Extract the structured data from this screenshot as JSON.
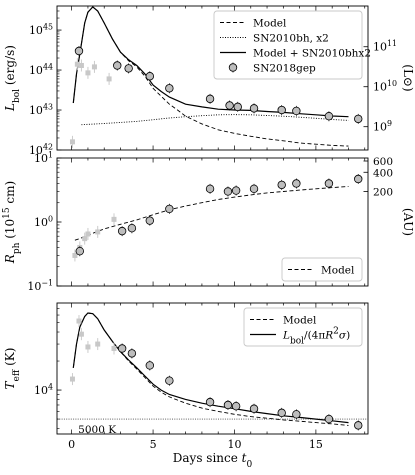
{
  "chart_data": [
    {
      "type": "line",
      "id": "lbol",
      "ylabel": "L_bol (erg/s)",
      "ylabel_right": "(L⊙)",
      "yscale": "log",
      "ylim": [
        1e+42,
        4e+45
      ],
      "yticks": [
        {
          "v": 1e+42,
          "label": "10^42"
        },
        {
          "v": 1e+43,
          "label": "10^43"
        },
        {
          "v": 1e+44,
          "label": "10^44"
        },
        {
          "v": 1e+45,
          "label": "10^45"
        }
      ],
      "yticks_right": [
        {
          "v": 3.828e+42,
          "label": "10^9"
        },
        {
          "v": 3.828e+43,
          "label": "10^10"
        },
        {
          "v": 3.828e+44,
          "label": "10^11"
        }
      ],
      "legend": {
        "position": "top-right",
        "entries": [
          "Model",
          "SN2010bh, x2",
          "Model + SN2010bhx2",
          "SN2018gep"
        ]
      },
      "series": [
        {
          "name": "Model",
          "style": "dashed",
          "points": [
            [
              0.1,
              1.5e+43
            ],
            [
              0.3,
              8e+43
            ],
            [
              0.5,
              2.5e+44
            ],
            [
              0.8,
              1.5e+45
            ],
            [
              1.0,
              2.8e+45
            ],
            [
              1.3,
              3.8e+45
            ],
            [
              1.6,
              3e+45
            ],
            [
              2.0,
              1.5e+45
            ],
            [
              2.5,
              6e+44
            ],
            [
              3.0,
              2.8e+44
            ],
            [
              3.5,
              1.7e+44
            ],
            [
              4.0,
              1.2e+44
            ],
            [
              4.5,
              7e+43
            ],
            [
              5.0,
              3.5e+43
            ],
            [
              5.5,
              2.2e+43
            ],
            [
              6.0,
              1.4e+43
            ],
            [
              6.5,
              1e+43
            ],
            [
              7.0,
              7e+42
            ],
            [
              8.0,
              4.5e+42
            ],
            [
              9.0,
              3.2e+42
            ],
            [
              10.0,
              2.6e+42
            ],
            [
              11.0,
              2.2e+42
            ],
            [
              12.0,
              1.9e+42
            ],
            [
              13.0,
              1.7e+42
            ],
            [
              14.0,
              1.5e+42
            ],
            [
              15.0,
              1.4e+42
            ],
            [
              16.0,
              1.3e+42
            ],
            [
              17.0,
              1.25e+42
            ]
          ]
        },
        {
          "name": "SN2010bh, x2",
          "style": "dotted",
          "points": [
            [
              0.6,
              4.3e+42
            ],
            [
              2.0,
              4.6e+42
            ],
            [
              4.0,
              5.2e+42
            ],
            [
              6.0,
              6.3e+42
            ],
            [
              7.0,
              6.8e+42
            ],
            [
              8.0,
              7.2e+42
            ],
            [
              9.0,
              7.6e+42
            ],
            [
              10.0,
              7.7e+42
            ],
            [
              11.0,
              7.6e+42
            ],
            [
              12.0,
              7.3e+42
            ],
            [
              13.0,
              7e+42
            ],
            [
              14.0,
              6.6e+42
            ],
            [
              15.0,
              6.2e+42
            ],
            [
              16.0,
              5.8e+42
            ],
            [
              17.0,
              5.5e+42
            ]
          ]
        },
        {
          "name": "Model + SN2010bhx2",
          "style": "solid",
          "points": [
            [
              0.1,
              1.5e+43
            ],
            [
              0.3,
              8e+43
            ],
            [
              0.5,
              2.5e+44
            ],
            [
              0.8,
              1.5e+45
            ],
            [
              1.0,
              2.8e+45
            ],
            [
              1.3,
              3.8e+45
            ],
            [
              1.6,
              3e+45
            ],
            [
              2.0,
              1.5e+45
            ],
            [
              2.5,
              6e+44
            ],
            [
              3.0,
              2.8e+44
            ],
            [
              3.5,
              1.8e+44
            ],
            [
              4.0,
              1.3e+44
            ],
            [
              4.5,
              8e+43
            ],
            [
              5.0,
              4.2e+43
            ],
            [
              5.5,
              2.9e+43
            ],
            [
              6.0,
              2.1e+43
            ],
            [
              7.0,
              1.4e+43
            ],
            [
              8.0,
              1.2e+43
            ],
            [
              9.0,
              1.05e+43
            ],
            [
              10.0,
              1e+43
            ],
            [
              11.0,
              9.8e+42
            ],
            [
              12.0,
              9.2e+42
            ],
            [
              13.0,
              8.7e+42
            ],
            [
              14.0,
              8.1e+42
            ],
            [
              15.0,
              7.6e+42
            ],
            [
              16.0,
              7.1e+42
            ],
            [
              17.0,
              6.8e+42
            ]
          ]
        }
      ],
      "points_name": "SN2018gep",
      "points": [
        [
          0.45,
          3e+44
        ],
        [
          2.8,
          1.3e+44
        ],
        [
          3.5,
          1.1e+44
        ],
        [
          4.8,
          7e+43
        ],
        [
          6.0,
          3.5e+43
        ],
        [
          8.5,
          1.9e+43
        ],
        [
          9.7,
          1.3e+43
        ],
        [
          10.2,
          1.2e+43
        ],
        [
          11.2,
          1.1e+43
        ],
        [
          12.9,
          1e+43
        ],
        [
          13.8,
          9.5e+42
        ],
        [
          15.8,
          7e+42
        ],
        [
          17.6,
          6e+42
        ]
      ],
      "early_points": [
        [
          0.05,
          1.6e+42
        ],
        [
          0.35,
          1.4e+44
        ],
        [
          0.6,
          1.3e+44
        ],
        [
          1.0,
          8.5e+43
        ],
        [
          1.4,
          1.2e+44
        ],
        [
          2.3,
          6e+43
        ]
      ]
    },
    {
      "type": "line",
      "id": "rph",
      "ylabel": "R_ph (10^15 cm)",
      "ylabel_right": "(AU)",
      "yscale": "log",
      "ylim": [
        0.1,
        10
      ],
      "yticks": [
        {
          "v": 0.1,
          "label": "10^-1"
        },
        {
          "v": 1,
          "label": "10^0"
        },
        {
          "v": 10,
          "label": "10^1"
        }
      ],
      "yticks_right": [
        {
          "v": 2.992,
          "label": "200"
        },
        {
          "v": 5.984,
          "label": "400"
        },
        {
          "v": 8.976,
          "label": "600"
        }
      ],
      "legend": {
        "position": "bottom-right",
        "entries": [
          "Model"
        ]
      },
      "series": [
        {
          "name": "Model",
          "style": "dashed",
          "points": [
            [
              0.2,
              0.52
            ],
            [
              0.5,
              0.55
            ],
            [
              1.0,
              0.62
            ],
            [
              1.5,
              0.7
            ],
            [
              2.0,
              0.78
            ],
            [
              3.0,
              0.92
            ],
            [
              4.0,
              1.08
            ],
            [
              5.0,
              1.3
            ],
            [
              6.0,
              1.55
            ],
            [
              7.0,
              1.78
            ],
            [
              8.0,
              2.0
            ],
            [
              9.0,
              2.25
            ],
            [
              10.0,
              2.45
            ],
            [
              11.0,
              2.65
            ],
            [
              12.0,
              2.85
            ],
            [
              13.0,
              3.0
            ],
            [
              14.0,
              3.15
            ],
            [
              15.0,
              3.3
            ],
            [
              16.0,
              3.45
            ],
            [
              17.0,
              3.6
            ]
          ]
        }
      ],
      "points": [
        [
          0.5,
          0.35
        ],
        [
          3.1,
          0.72
        ],
        [
          3.7,
          0.8
        ],
        [
          4.8,
          1.05
        ],
        [
          6.0,
          1.6
        ],
        [
          8.5,
          3.3
        ],
        [
          9.6,
          3.0
        ],
        [
          10.1,
          3.1
        ],
        [
          11.2,
          3.3
        ],
        [
          12.9,
          3.8
        ],
        [
          13.8,
          4.0
        ],
        [
          15.8,
          4.0
        ],
        [
          17.6,
          4.7
        ]
      ],
      "early_points": [
        [
          0.2,
          0.3
        ],
        [
          0.5,
          0.4
        ],
        [
          0.8,
          0.55
        ],
        [
          1.0,
          0.65
        ],
        [
          1.6,
          0.7
        ],
        [
          2.6,
          1.1
        ]
      ]
    },
    {
      "type": "line",
      "id": "teff",
      "ylabel": "T_eff (K)",
      "xlabel": "Days since t0",
      "yscale": "log",
      "ylim": [
        3500,
        80000
      ],
      "yticks": [
        {
          "v": 10000,
          "label": "10^4"
        }
      ],
      "hline": {
        "value": 5000,
        "label": "5000 K"
      },
      "legend": {
        "position": "top-right",
        "entries": [
          "Model",
          "L_bol/(4πR²σ)"
        ]
      },
      "series": [
        {
          "name": "Model",
          "style": "dashed",
          "points": [
            [
              0.1,
              17000
            ],
            [
              0.3,
              30000
            ],
            [
              0.5,
              45000
            ],
            [
              0.8,
              58000
            ],
            [
              1.0,
              63000
            ],
            [
              1.3,
              62000
            ],
            [
              1.6,
              55000
            ],
            [
              2.0,
              42000
            ],
            [
              2.5,
              32000
            ],
            [
              3.0,
              25000
            ],
            [
              3.5,
              20000
            ],
            [
              4.0,
              16500
            ],
            [
              4.5,
              13500
            ],
            [
              5.0,
              11000
            ],
            [
              5.5,
              9500
            ],
            [
              6.0,
              8500
            ],
            [
              7.0,
              7300
            ],
            [
              8.0,
              6500
            ],
            [
              9.0,
              6000
            ],
            [
              10.0,
              5600
            ],
            [
              11.0,
              5300
            ],
            [
              12.0,
              5100
            ],
            [
              13.0,
              4900
            ],
            [
              14.0,
              4750
            ],
            [
              15.0,
              4600
            ],
            [
              16.0,
              4450
            ],
            [
              17.0,
              4300
            ]
          ]
        },
        {
          "name": "L_bol/(4πR²σ)",
          "style": "solid",
          "points": [
            [
              0.1,
              17000
            ],
            [
              0.3,
              30000
            ],
            [
              0.5,
              45000
            ],
            [
              0.8,
              58000
            ],
            [
              1.0,
              63000
            ],
            [
              1.3,
              62000
            ],
            [
              1.6,
              55000
            ],
            [
              2.0,
              42000
            ],
            [
              2.5,
              32000
            ],
            [
              3.0,
              25000
            ],
            [
              3.5,
              20500
            ],
            [
              4.0,
              17000
            ],
            [
              4.5,
              14000
            ],
            [
              5.0,
              11500
            ],
            [
              5.5,
              10000
            ],
            [
              6.0,
              9000
            ],
            [
              7.0,
              8000
            ],
            [
              8.0,
              7300
            ],
            [
              9.0,
              6800
            ],
            [
              10.0,
              6400
            ],
            [
              11.0,
              6000
            ],
            [
              12.0,
              5700
            ],
            [
              13.0,
              5400
            ],
            [
              14.0,
              5200
            ],
            [
              15.0,
              5000
            ],
            [
              16.0,
              4800
            ],
            [
              17.0,
              4600
            ]
          ]
        }
      ],
      "points": [
        [
          3.1,
          27000
        ],
        [
          3.7,
          24000
        ],
        [
          4.8,
          18000
        ],
        [
          6.0,
          12500
        ],
        [
          8.5,
          7500
        ],
        [
          9.6,
          7000
        ],
        [
          10.1,
          6800
        ],
        [
          11.2,
          6400
        ],
        [
          12.9,
          5800
        ],
        [
          13.8,
          5600
        ],
        [
          15.8,
          5000
        ],
        [
          17.6,
          4300
        ]
      ],
      "early_points": [
        [
          0.05,
          13000
        ],
        [
          0.45,
          52000
        ],
        [
          0.6,
          38000
        ],
        [
          1.0,
          28000
        ],
        [
          1.6,
          30000
        ],
        [
          2.6,
          27000
        ]
      ]
    }
  ],
  "x_axis": {
    "xlim": [
      -0.9,
      18.2
    ],
    "ticks": [
      {
        "v": 0,
        "label": "0"
      },
      {
        "v": 5,
        "label": "5"
      },
      {
        "v": 10,
        "label": "10"
      },
      {
        "v": 15,
        "label": "15"
      }
    ],
    "xlabel": "Days since t0"
  }
}
